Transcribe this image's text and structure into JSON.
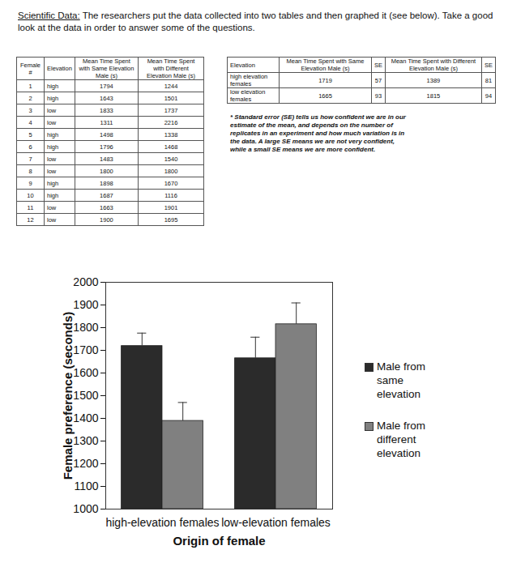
{
  "header": {
    "lead": "Scientific Data:",
    "text": " The researchers put the data collected into two tables and then graphed it (see below). Take a good look at the data in order to answer some of the questions."
  },
  "table1": {
    "columns": [
      "Female #",
      "Elevation",
      "Mean Time Spent with Same Elevation Male (s)",
      "Mean Time Spent with Different Elevation Male (s)"
    ],
    "rows": [
      [
        1,
        "high",
        1794,
        1244
      ],
      [
        2,
        "high",
        1643,
        1501
      ],
      [
        3,
        "low",
        1833,
        1737
      ],
      [
        4,
        "low",
        1311,
        2216
      ],
      [
        5,
        "high",
        1498,
        1338
      ],
      [
        6,
        "high",
        1796,
        1468
      ],
      [
        7,
        "low",
        1483,
        1540
      ],
      [
        8,
        "low",
        1800,
        1800
      ],
      [
        9,
        "high",
        1898,
        1670
      ],
      [
        10,
        "high",
        1687,
        1116
      ],
      [
        11,
        "low",
        1663,
        1901
      ],
      [
        12,
        "low",
        1900,
        1695
      ]
    ]
  },
  "table2": {
    "columns": [
      "Elevation",
      "Mean Time Spent with Same Elevation Male (s)",
      "SE",
      "Mean Time Spent with Different Elevation Male (s)",
      "SE"
    ],
    "rows": [
      [
        "high elevation females",
        1719,
        57,
        1389,
        81
      ],
      [
        "low elevation females",
        1665,
        93,
        1815,
        94
      ]
    ]
  },
  "note": "* Standard error (SE) tells us how confident we are in our estimate of the mean, and depends on the number of replicates in an experiment and how much variation is in the data. A large SE means we are not very confident, while a small SE means we are more confident.",
  "chart_data": {
    "type": "bar",
    "x_label": "Origin of female",
    "y_label": "Female preference (seconds)",
    "categories": [
      "high-elevation females",
      "low-elevation females"
    ],
    "series": [
      {
        "name": "Male from same elevation",
        "color": "#2b2b2b",
        "values": [
          1719,
          1665
        ],
        "errors": [
          57,
          93
        ]
      },
      {
        "name": "Male from different elevation",
        "color": "#808080",
        "values": [
          1389,
          1815
        ],
        "errors": [
          81,
          94
        ]
      }
    ],
    "ylim": [
      1000,
      2000
    ],
    "yticks": [
      1000,
      1100,
      1200,
      1300,
      1400,
      1500,
      1600,
      1700,
      1800,
      1900,
      2000
    ],
    "grid": false,
    "legend": "right"
  }
}
